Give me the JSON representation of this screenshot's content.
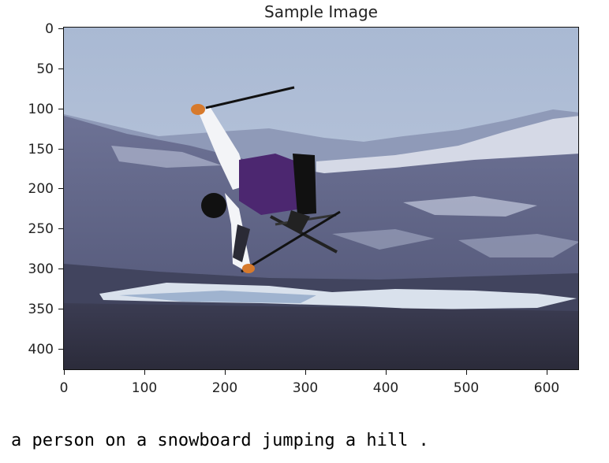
{
  "figure": {
    "title": "Sample Image",
    "image_description_icon": "skier-jump-photo-icon",
    "y_ticks": [
      "0",
      "50",
      "100",
      "150",
      "200",
      "250",
      "300",
      "350",
      "400"
    ],
    "x_ticks": [
      "0",
      "100",
      "200",
      "300",
      "400",
      "500",
      "600"
    ]
  },
  "caption": "a person on a snowboard jumping a hill ."
}
